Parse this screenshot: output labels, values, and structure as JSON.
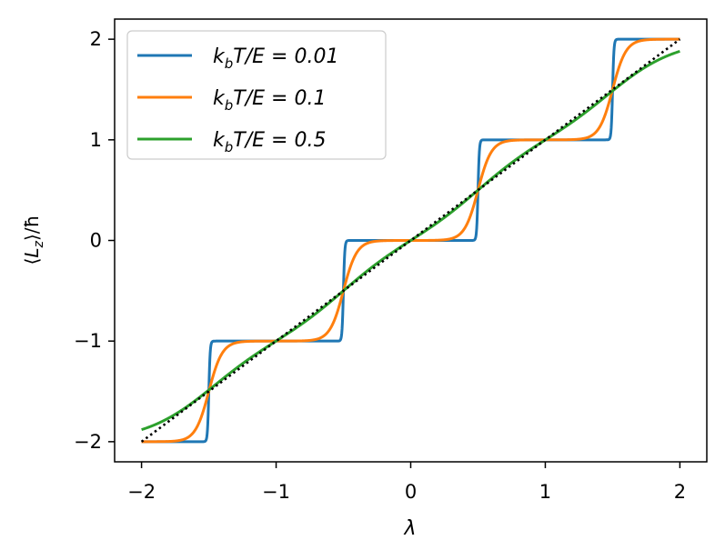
{
  "chart_data": {
    "type": "line",
    "title": "",
    "xlabel": "λ",
    "ylabel_parts": [
      "⟨",
      "L",
      "z",
      "⟩/ħ"
    ],
    "xlim": [
      -2.2,
      2.2
    ],
    "ylim": [
      -2.2,
      2.2
    ],
    "xticks": [
      -2,
      -1,
      0,
      1,
      2
    ],
    "yticks": [
      -2,
      -1,
      0,
      1,
      2
    ],
    "xtick_labels": [
      "−2",
      "−1",
      "0",
      "1",
      "2"
    ],
    "ytick_labels": [
      "−2",
      "−1",
      "0",
      "1",
      "2"
    ],
    "grid": false,
    "legend_position": "top-left",
    "x_range": [
      -2,
      2
    ],
    "series": [
      {
        "name": "k_bT/E = 0.01",
        "legend_parts": [
          "k",
          "b",
          "T/E = 0.01"
        ],
        "kT": 0.01,
        "color": "#1f77b4"
      },
      {
        "name": "k_bT/E = 0.1",
        "legend_parts": [
          "k",
          "b",
          "T/E = 0.1"
        ],
        "kT": 0.1,
        "color": "#ff7f0e"
      },
      {
        "name": "k_bT/E = 0.5",
        "legend_parts": [
          "k",
          "b",
          "T/E = 0.5"
        ],
        "kT": 0.5,
        "color": "#2ca02c"
      }
    ],
    "reference_line": {
      "x": [
        -2,
        2
      ],
      "y": [
        -2,
        2
      ],
      "color": "#000000",
      "style": "dotted"
    }
  }
}
